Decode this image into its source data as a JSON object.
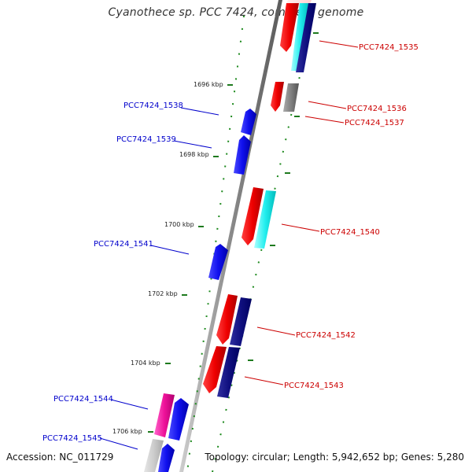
{
  "title": "Cyanothece sp. PCC 7424, complete genome",
  "accession": "Accession: NC_011729",
  "topology": "Topology: circular; Length: 5,942,652 bp; Genes: 5,280",
  "kbp_labels": [
    "1696 kbp",
    "1698 kbp",
    "1700 kbp",
    "1702 kbp",
    "1704 kbp",
    "1706 kbp"
  ],
  "gene_labels": {
    "g1535": "PCC7424_1535",
    "g1536": "PCC7424_1536",
    "g1537": "PCC7424_1537",
    "g1538": "PCC7424_1538",
    "g1539": "PCC7424_1539",
    "g1540": "PCC7424_1540",
    "g1541": "PCC7424_1541",
    "g1542": "PCC7424_1542",
    "g1543": "PCC7424_1543",
    "g1544": "PCC7424_1544",
    "g1545": "PCC7424_1545"
  },
  "colors": {
    "forward_label": "#cc0000",
    "reverse_label": "#0000cc",
    "backbone": "#888888",
    "tick": "#1e7a1e"
  }
}
